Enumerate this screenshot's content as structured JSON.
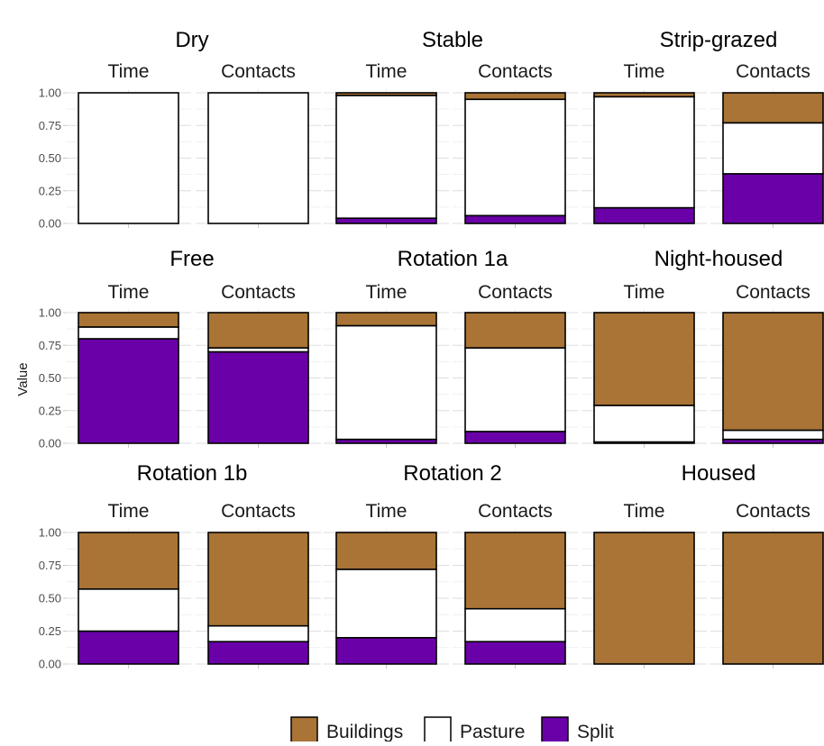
{
  "chart_data": {
    "type": "bar",
    "stacked": true,
    "ylabel": "Value",
    "xlabel": "",
    "ylim": [
      0,
      1
    ],
    "y_ticks": [
      "0.00",
      "0.25",
      "0.50",
      "0.75",
      "1.00"
    ],
    "legend": {
      "position": "bottom",
      "entries": [
        {
          "name": "Buildings",
          "color": "#A97436"
        },
        {
          "name": "Pasture",
          "color": "#FFFFFF"
        },
        {
          "name": "Split",
          "color": "#6A00A8"
        }
      ]
    },
    "panels": [
      {
        "title": "Dry",
        "bars": [
          {
            "label": "Time",
            "split": 0.0,
            "pasture": 1.0,
            "buildings": 0.0
          },
          {
            "label": "Contacts",
            "split": 0.0,
            "pasture": 1.0,
            "buildings": 0.0
          }
        ]
      },
      {
        "title": "Stable",
        "bars": [
          {
            "label": "Time",
            "split": 0.04,
            "pasture": 0.94,
            "buildings": 0.02
          },
          {
            "label": "Contacts",
            "split": 0.06,
            "pasture": 0.89,
            "buildings": 0.05
          }
        ]
      },
      {
        "title": "Strip-grazed",
        "bars": [
          {
            "label": "Time",
            "split": 0.12,
            "pasture": 0.85,
            "buildings": 0.03
          },
          {
            "label": "Contacts",
            "split": 0.38,
            "pasture": 0.39,
            "buildings": 0.23
          }
        ]
      },
      {
        "title": "Free",
        "bars": [
          {
            "label": "Time",
            "split": 0.8,
            "pasture": 0.09,
            "buildings": 0.11
          },
          {
            "label": "Contacts",
            "split": 0.7,
            "pasture": 0.03,
            "buildings": 0.27
          }
        ]
      },
      {
        "title": "Rotation 1a",
        "bars": [
          {
            "label": "Time",
            "split": 0.03,
            "pasture": 0.87,
            "buildings": 0.1
          },
          {
            "label": "Contacts",
            "split": 0.09,
            "pasture": 0.64,
            "buildings": 0.27
          }
        ]
      },
      {
        "title": "Night-housed",
        "bars": [
          {
            "label": "Time",
            "split": 0.01,
            "pasture": 0.28,
            "buildings": 0.71
          },
          {
            "label": "Contacts",
            "split": 0.03,
            "pasture": 0.07,
            "buildings": 0.9
          }
        ]
      },
      {
        "title": "Rotation 1b",
        "bars": [
          {
            "label": "Time",
            "split": 0.25,
            "pasture": 0.32,
            "buildings": 0.43
          },
          {
            "label": "Contacts",
            "split": 0.17,
            "pasture": 0.12,
            "buildings": 0.71
          }
        ]
      },
      {
        "title": "Rotation 2",
        "bars": [
          {
            "label": "Time",
            "split": 0.2,
            "pasture": 0.52,
            "buildings": 0.28
          },
          {
            "label": "Contacts",
            "split": 0.17,
            "pasture": 0.25,
            "buildings": 0.58
          }
        ]
      },
      {
        "title": "Housed",
        "bars": [
          {
            "label": "Time",
            "split": 0.0,
            "pasture": 0.0,
            "buildings": 1.0
          },
          {
            "label": "Contacts",
            "split": 0.0,
            "pasture": 0.0,
            "buildings": 1.0
          }
        ]
      }
    ]
  }
}
